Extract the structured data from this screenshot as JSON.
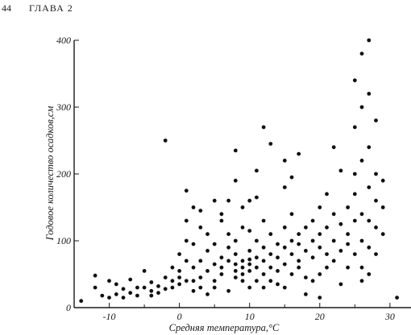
{
  "page": {
    "number": "44",
    "chapter": "ГЛАВА  2"
  },
  "chart_data": {
    "type": "scatter",
    "title": "",
    "xlabel": "Средняя температура,°С",
    "ylabel": "Годовое количество осадков,см",
    "xlim": [
      -15,
      33
    ],
    "ylim": [
      0,
      400
    ],
    "xticks": [
      "-10",
      "0",
      "10",
      "20",
      "30"
    ],
    "yticks": [
      "0",
      "100",
      "200",
      "300",
      "400"
    ],
    "grid": false,
    "point_color": "#111111",
    "points": [
      [
        -14,
        10
      ],
      [
        -12,
        48
      ],
      [
        -12,
        30
      ],
      [
        -11,
        18
      ],
      [
        -10,
        15
      ],
      [
        -10,
        40
      ],
      [
        -9,
        20
      ],
      [
        -9,
        35
      ],
      [
        -8,
        28
      ],
      [
        -8,
        15
      ],
      [
        -7,
        42
      ],
      [
        -7,
        22
      ],
      [
        -6,
        30
      ],
      [
        -6,
        18
      ],
      [
        -5,
        55
      ],
      [
        -5,
        30
      ],
      [
        -4,
        25
      ],
      [
        -4,
        18
      ],
      [
        -4,
        38
      ],
      [
        -3,
        32
      ],
      [
        -3,
        22
      ],
      [
        -2,
        45
      ],
      [
        -2,
        28
      ],
      [
        -2,
        250
      ],
      [
        -1,
        40
      ],
      [
        -1,
        30
      ],
      [
        -1,
        60
      ],
      [
        0,
        45
      ],
      [
        0,
        35
      ],
      [
        0,
        55
      ],
      [
        0,
        80
      ],
      [
        1,
        70
      ],
      [
        1,
        40
      ],
      [
        1,
        100
      ],
      [
        1,
        130
      ],
      [
        1,
        175
      ],
      [
        2,
        40
      ],
      [
        2,
        60
      ],
      [
        2,
        25
      ],
      [
        2,
        95
      ],
      [
        2,
        150
      ],
      [
        3,
        45
      ],
      [
        3,
        30
      ],
      [
        3,
        70
      ],
      [
        3,
        120
      ],
      [
        3,
        145
      ],
      [
        4,
        55
      ],
      [
        4,
        85
      ],
      [
        4,
        20
      ],
      [
        4,
        110
      ],
      [
        5,
        65
      ],
      [
        5,
        40
      ],
      [
        5,
        30
      ],
      [
        5,
        95
      ],
      [
        5,
        160
      ],
      [
        6,
        75
      ],
      [
        6,
        60
      ],
      [
        6,
        130
      ],
      [
        6,
        50
      ],
      [
        6,
        140
      ],
      [
        7,
        90
      ],
      [
        7,
        70
      ],
      [
        7,
        25
      ],
      [
        7,
        110
      ],
      [
        7,
        160
      ],
      [
        8,
        55
      ],
      [
        8,
        65
      ],
      [
        8,
        80
      ],
      [
        8,
        45
      ],
      [
        8,
        100
      ],
      [
        8,
        235
      ],
      [
        8,
        190
      ],
      [
        9,
        70
      ],
      [
        9,
        60
      ],
      [
        9,
        50
      ],
      [
        9,
        120
      ],
      [
        9,
        40
      ],
      [
        9,
        150
      ],
      [
        10,
        65
      ],
      [
        10,
        72
      ],
      [
        10,
        55
      ],
      [
        10,
        85
      ],
      [
        10,
        30
      ],
      [
        10,
        160
      ],
      [
        10,
        115
      ],
      [
        11,
        60
      ],
      [
        11,
        75
      ],
      [
        11,
        40
      ],
      [
        11,
        100
      ],
      [
        11,
        165
      ],
      [
        11,
        205
      ],
      [
        12,
        70
      ],
      [
        12,
        50
      ],
      [
        12,
        90
      ],
      [
        12,
        30
      ],
      [
        12,
        130
      ],
      [
        12,
        270
      ],
      [
        13,
        80
      ],
      [
        13,
        60
      ],
      [
        13,
        110
      ],
      [
        13,
        40
      ],
      [
        13,
        245
      ],
      [
        14,
        75
      ],
      [
        14,
        95
      ],
      [
        14,
        35
      ],
      [
        14,
        55
      ],
      [
        15,
        65
      ],
      [
        15,
        120
      ],
      [
        15,
        90
      ],
      [
        15,
        30
      ],
      [
        15,
        180
      ],
      [
        15,
        220
      ],
      [
        16,
        80
      ],
      [
        16,
        100
      ],
      [
        16,
        50
      ],
      [
        16,
        140
      ],
      [
        16,
        195
      ],
      [
        17,
        95
      ],
      [
        17,
        70
      ],
      [
        17,
        60
      ],
      [
        17,
        110
      ],
      [
        17,
        230
      ],
      [
        18,
        85
      ],
      [
        18,
        120
      ],
      [
        18,
        45
      ],
      [
        18,
        20
      ],
      [
        19,
        100
      ],
      [
        19,
        75
      ],
      [
        19,
        130
      ],
      [
        19,
        40
      ],
      [
        20,
        90
      ],
      [
        20,
        110
      ],
      [
        20,
        150
      ],
      [
        20,
        50
      ],
      [
        20,
        15
      ],
      [
        21,
        120
      ],
      [
        21,
        80
      ],
      [
        21,
        60
      ],
      [
        21,
        170
      ],
      [
        22,
        100
      ],
      [
        22,
        140
      ],
      [
        22,
        70
      ],
      [
        22,
        240
      ],
      [
        23,
        85
      ],
      [
        23,
        125
      ],
      [
        23,
        205
      ],
      [
        23,
        35
      ],
      [
        24,
        95
      ],
      [
        24,
        60
      ],
      [
        24,
        150
      ],
      [
        24,
        110
      ],
      [
        25,
        130
      ],
      [
        25,
        80
      ],
      [
        25,
        200
      ],
      [
        25,
        270
      ],
      [
        25,
        340
      ],
      [
        25,
        170
      ],
      [
        26,
        100
      ],
      [
        26,
        60
      ],
      [
        26,
        220
      ],
      [
        26,
        300
      ],
      [
        26,
        380
      ],
      [
        26,
        140
      ],
      [
        26,
        40
      ],
      [
        27,
        90
      ],
      [
        27,
        130
      ],
      [
        27,
        180
      ],
      [
        27,
        240
      ],
      [
        27,
        320
      ],
      [
        27,
        400
      ],
      [
        27,
        50
      ],
      [
        28,
        120
      ],
      [
        28,
        160
      ],
      [
        28,
        200
      ],
      [
        28,
        280
      ],
      [
        28,
        80
      ],
      [
        29,
        110
      ],
      [
        29,
        150
      ],
      [
        29,
        190
      ],
      [
        31,
        15
      ]
    ]
  }
}
